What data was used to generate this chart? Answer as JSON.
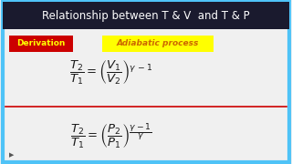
{
  "bg_color": "#e8e8e8",
  "title": "Relationship between T & V  and T & P",
  "title_color": "#ffffff",
  "title_bg": "#1a1a2e",
  "header_bg": "#1a1a2e",
  "deriv_label": "Derivation",
  "deriv_bg": "#cc0000",
  "deriv_fg": "#ffff00",
  "adiab_label": "Adiabatic process",
  "adiab_bg": "#ffff00",
  "adiab_fg": "#cc6600",
  "eq1": "$\\dfrac{T_2}{T_1} = \\left(\\dfrac{V_1}{V_2}\\right)^{\\gamma\\,-1}$",
  "eq2": "$\\dfrac{T_2}{T_1} = \\left(\\dfrac{P_2}{P_1}\\right)^{\\dfrac{\\gamma-1}{\\gamma}}$",
  "eq_color": "#1a1a1a",
  "border_color": "#4fc3f7",
  "divider_color": "#cc0000",
  "inner_bg": "#f0f0f0"
}
